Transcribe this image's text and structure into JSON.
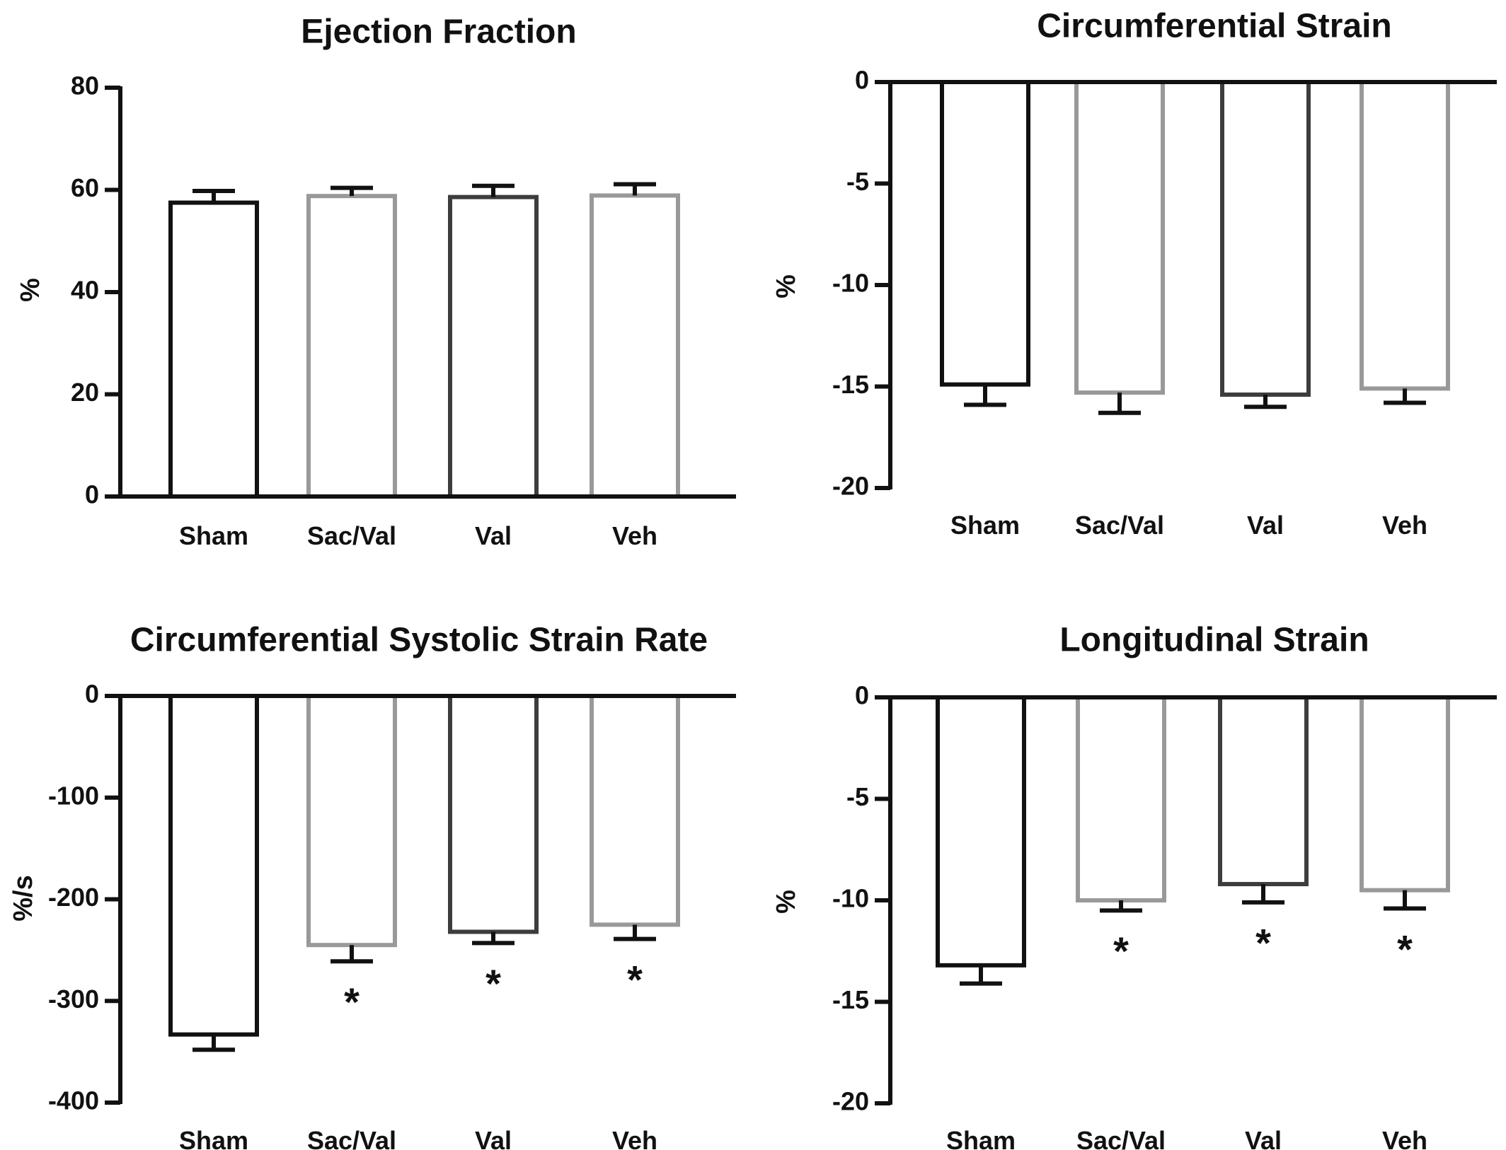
{
  "chart_data": [
    {
      "type": "bar",
      "title": "Ejection Fraction",
      "ylabel": "%",
      "xlabel": "",
      "categories": [
        "Sham",
        "Sac/Val",
        "Val",
        "Veh"
      ],
      "values": [
        57.5,
        58.8,
        58.6,
        58.9
      ],
      "error": [
        2.3,
        1.6,
        2.2,
        2.2
      ],
      "significance": [
        "",
        "",
        "",
        ""
      ],
      "ylim": [
        0,
        80
      ],
      "yticks": [
        0,
        20,
        40,
        60,
        80
      ],
      "ytick_labels": [
        "0",
        "20",
        "40",
        "60",
        "80"
      ],
      "bar_colors": [
        "#111111",
        "#999999",
        "#3d3d3d",
        "#999999"
      ],
      "grid": false
    },
    {
      "type": "bar",
      "title": "Circumferential Strain",
      "ylabel": "%",
      "xlabel": "",
      "categories": [
        "Sham",
        "Sac/Val",
        "Val",
        "Veh"
      ],
      "values": [
        -14.9,
        -15.3,
        -15.4,
        -15.1
      ],
      "error": [
        1.0,
        1.0,
        0.6,
        0.7
      ],
      "significance": [
        "",
        "",
        "",
        ""
      ],
      "ylim": [
        -20,
        0
      ],
      "yticks": [
        0,
        -5,
        -10,
        -15,
        -20
      ],
      "ytick_labels": [
        "0",
        "-5",
        "-10",
        "-15",
        "-20"
      ],
      "bar_colors": [
        "#111111",
        "#999999",
        "#3d3d3d",
        "#999999"
      ],
      "grid": false
    },
    {
      "type": "bar",
      "title": "Circumferential Systolic Strain Rate",
      "ylabel": "%/s",
      "xlabel": "",
      "categories": [
        "Sham",
        "Sac/Val",
        "Val",
        "Veh"
      ],
      "values": [
        -333,
        -245,
        -232,
        -225
      ],
      "error": [
        15,
        16,
        11,
        14
      ],
      "significance": [
        "",
        "*",
        "*",
        "*"
      ],
      "ylim": [
        -400,
        0
      ],
      "yticks": [
        0,
        -100,
        -200,
        -300,
        -400
      ],
      "ytick_labels": [
        "0",
        "-100",
        "-200",
        "-300",
        "-400"
      ],
      "bar_colors": [
        "#111111",
        "#999999",
        "#3d3d3d",
        "#999999"
      ],
      "grid": false
    },
    {
      "type": "bar",
      "title": "Longitudinal Strain",
      "ylabel": "%",
      "xlabel": "",
      "categories": [
        "Sham",
        "Sac/Val",
        "Val",
        "Veh"
      ],
      "values": [
        -13.2,
        -10.0,
        -9.2,
        -9.5
      ],
      "error": [
        0.9,
        0.5,
        0.9,
        0.9
      ],
      "significance": [
        "",
        "*",
        "*",
        "*"
      ],
      "ylim": [
        -20,
        0
      ],
      "yticks": [
        0,
        -5,
        -10,
        -15,
        -20
      ],
      "ytick_labels": [
        "0",
        "-5",
        "-10",
        "-15",
        "-20"
      ],
      "bar_colors": [
        "#111111",
        "#999999",
        "#3d3d3d",
        "#999999"
      ],
      "grid": false
    }
  ]
}
